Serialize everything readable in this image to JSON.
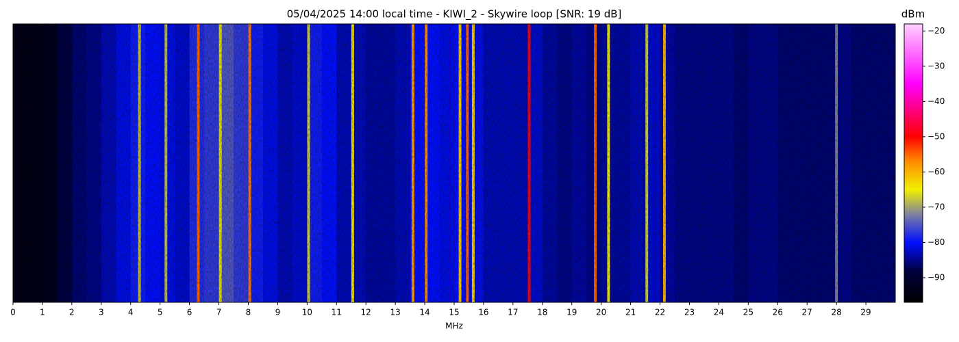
{
  "chart_data": {
    "type": "heatmap",
    "title": "05/04/2025 14:00 local time - KIWI_2 - Skywire loop [SNR: 19 dB]",
    "xlabel": "MHz",
    "colorbar_label": "dBm",
    "xlim": [
      0,
      30
    ],
    "xticks": [
      0,
      1,
      2,
      3,
      4,
      5,
      6,
      7,
      8,
      9,
      10,
      11,
      12,
      13,
      14,
      15,
      16,
      17,
      18,
      19,
      20,
      21,
      22,
      23,
      24,
      25,
      26,
      27,
      28,
      29
    ],
    "clim": [
      -97,
      -18
    ],
    "cticks": [
      {
        "value": -90,
        "label": "−90"
      },
      {
        "value": -80,
        "label": "−80"
      },
      {
        "value": -70,
        "label": "−70"
      },
      {
        "value": -60,
        "label": "−60"
      },
      {
        "value": -50,
        "label": "−50"
      },
      {
        "value": -40,
        "label": "−40"
      },
      {
        "value": -30,
        "label": "−30"
      },
      {
        "value": -20,
        "label": "−20"
      }
    ],
    "colormap": [
      {
        "value": -97,
        "color": "#000000"
      },
      {
        "value": -88,
        "color": "#000040"
      },
      {
        "value": -80,
        "color": "#0010ff"
      },
      {
        "value": -72,
        "color": "#8080a0"
      },
      {
        "value": -65,
        "color": "#f0f000"
      },
      {
        "value": -57,
        "color": "#ff8c00"
      },
      {
        "value": -50,
        "color": "#ff0000"
      },
      {
        "value": -35,
        "color": "#ff00ff"
      },
      {
        "value": -18,
        "color": "#ffd0ff"
      }
    ],
    "x": [
      0,
      0.5,
      1,
      1.5,
      2,
      2.5,
      3,
      3.5,
      4,
      4.5,
      5,
      5.5,
      6,
      6.5,
      7,
      7.5,
      8,
      8.5,
      9,
      9.5,
      10,
      10.5,
      11,
      11.5,
      12,
      12.5,
      13,
      13.5,
      14,
      14.5,
      15,
      15.5,
      16,
      16.5,
      17,
      17.5,
      18,
      18.5,
      19,
      19.5,
      20,
      20.5,
      21,
      21.5,
      22,
      22.5,
      23,
      23.5,
      24,
      24.5,
      25,
      25.5,
      26,
      26.5,
      27,
      27.5,
      28,
      28.5,
      29,
      29.5
    ],
    "values": [
      -94,
      -94,
      -93,
      -88,
      -86,
      -85,
      -83,
      -81,
      -79,
      -80,
      -81,
      -82,
      -78,
      -77,
      -75,
      -77,
      -79,
      -81,
      -83,
      -82,
      -79,
      -80,
      -83,
      -83,
      -84,
      -84,
      -83,
      -80,
      -80,
      -81,
      -80,
      -81,
      -83,
      -83,
      -83,
      -82,
      -84,
      -85,
      -84,
      -85,
      -84,
      -84,
      -83,
      -82,
      -84,
      -85,
      -85,
      -85,
      -85,
      -86,
      -85,
      -85,
      -86,
      -86,
      -86,
      -86,
      -85,
      -86,
      -86,
      -86
    ],
    "carriers": [
      {
        "freq": 4.3,
        "level": -68
      },
      {
        "freq": 5.2,
        "level": -68
      },
      {
        "freq": 6.3,
        "level": -55
      },
      {
        "freq": 7.05,
        "level": -66
      },
      {
        "freq": 8.05,
        "level": -56
      },
      {
        "freq": 10.05,
        "level": -67
      },
      {
        "freq": 11.55,
        "level": -64
      },
      {
        "freq": 13.6,
        "level": -58
      },
      {
        "freq": 14.05,
        "level": -57
      },
      {
        "freq": 15.2,
        "level": -62
      },
      {
        "freq": 15.45,
        "level": -55
      },
      {
        "freq": 15.65,
        "level": -62
      },
      {
        "freq": 17.55,
        "level": -50
      },
      {
        "freq": 19.8,
        "level": -55
      },
      {
        "freq": 20.25,
        "level": -65
      },
      {
        "freq": 21.55,
        "level": -67
      },
      {
        "freq": 22.15,
        "level": -60
      },
      {
        "freq": 28.0,
        "level": -72
      }
    ]
  }
}
